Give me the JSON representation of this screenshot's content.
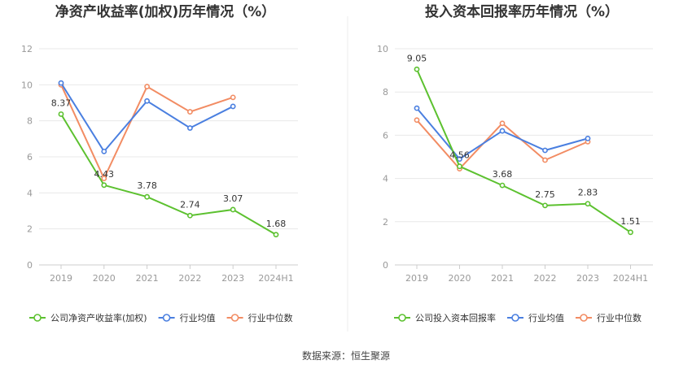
{
  "source_label": "数据来源：恒生聚源",
  "colors": {
    "company": "#5cc12f",
    "avg": "#4a7fe0",
    "median": "#f28c63",
    "grid": "#e8e8e8",
    "axis": "#cccccc"
  },
  "chart_data": [
    {
      "type": "line",
      "title": "净资产收益率(加权)历年情况（%）",
      "categories": [
        "2019",
        "2020",
        "2021",
        "2022",
        "2023",
        "2024H1"
      ],
      "ylim": [
        0,
        12
      ],
      "yticks": [
        "0",
        "2",
        "4",
        "6",
        "8",
        "10",
        "12"
      ],
      "series": [
        {
          "name": "公司净资产收益率(加权)",
          "role": "company",
          "values": [
            8.37,
            4.43,
            3.78,
            2.74,
            3.07,
            1.68
          ],
          "labels": [
            "8.37",
            "4.43",
            "3.78",
            "2.74",
            "3.07",
            "1.68"
          ]
        },
        {
          "name": "行业均值",
          "role": "avg",
          "values": [
            10.1,
            6.3,
            9.1,
            7.6,
            8.8,
            null
          ]
        },
        {
          "name": "行业中位数",
          "role": "median",
          "values": [
            10.0,
            4.8,
            9.9,
            8.5,
            9.3,
            null
          ]
        }
      ]
    },
    {
      "type": "line",
      "title": "投入资本回报率历年情况（%）",
      "categories": [
        "2019",
        "2020",
        "2021",
        "2022",
        "2023",
        "2024H1"
      ],
      "ylim": [
        0,
        10
      ],
      "yticks": [
        "0",
        "2",
        "4",
        "6",
        "8",
        "10"
      ],
      "series": [
        {
          "name": "公司投入资本回报率",
          "role": "company",
          "values": [
            9.05,
            4.56,
            3.68,
            2.75,
            2.83,
            1.51
          ],
          "labels": [
            "9.05",
            "4.56",
            "3.68",
            "2.75",
            "2.83",
            "1.51"
          ]
        },
        {
          "name": "行业均值",
          "role": "avg",
          "values": [
            7.25,
            4.9,
            6.2,
            5.3,
            5.85,
            null
          ]
        },
        {
          "name": "行业中位数",
          "role": "median",
          "values": [
            6.7,
            4.45,
            6.55,
            4.85,
            5.7,
            null
          ]
        }
      ]
    }
  ]
}
